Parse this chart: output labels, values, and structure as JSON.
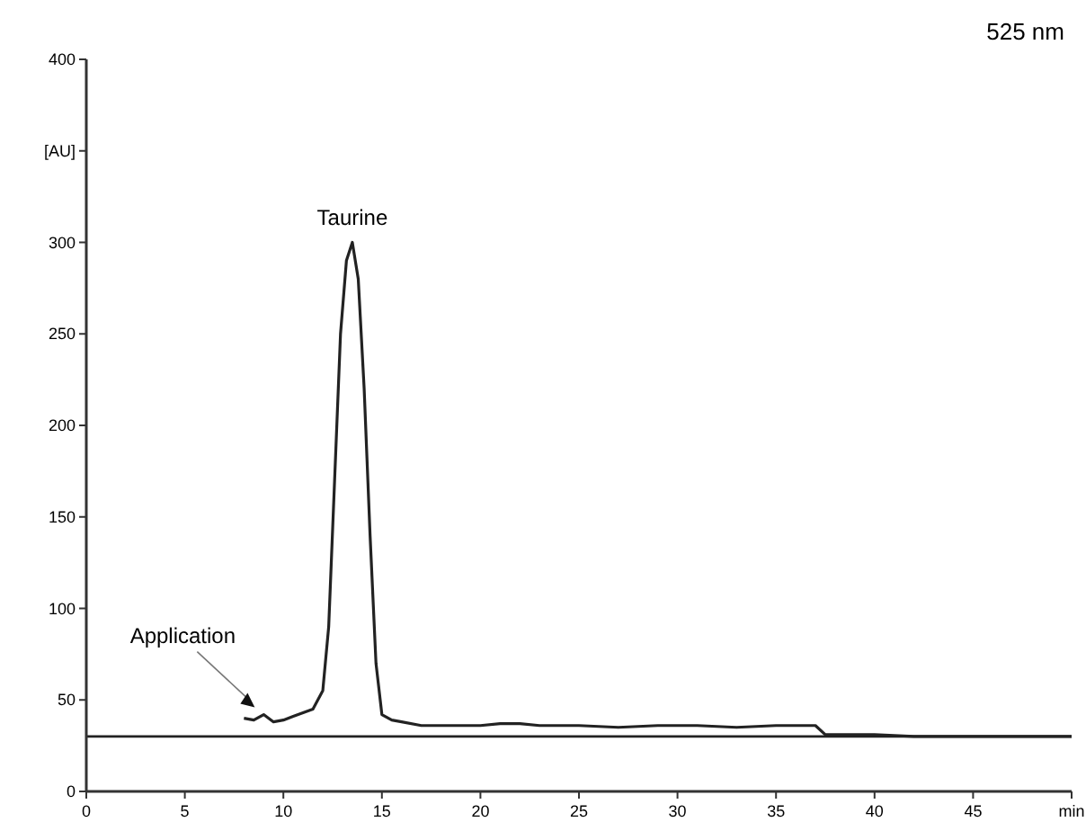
{
  "chart_data": {
    "type": "line",
    "title": "525 nm",
    "x": [
      8,
      8.5,
      9,
      9.5,
      10,
      10.5,
      11,
      11.5,
      12,
      12.3,
      12.6,
      12.9,
      13.2,
      13.5,
      13.8,
      14.1,
      14.4,
      14.7,
      15,
      15.5,
      16,
      17,
      18,
      19,
      20,
      21,
      22,
      23,
      24,
      25,
      27,
      29,
      31,
      33,
      35,
      36.5,
      37,
      37.5,
      38,
      40,
      42,
      45,
      48,
      50
    ],
    "series": [
      {
        "color": "#222222",
        "values": [
          40,
          39,
          42,
          38,
          39,
          41,
          43,
          45,
          55,
          90,
          170,
          250,
          290,
          300,
          280,
          220,
          140,
          70,
          42,
          39,
          38,
          36,
          36,
          36,
          36,
          37,
          37,
          36,
          36,
          36,
          35,
          36,
          36,
          35,
          36,
          36,
          36,
          31,
          31,
          31,
          30,
          30,
          30,
          30
        ]
      }
    ],
    "xlim": [
      0,
      50
    ],
    "xticks": [
      0,
      5,
      10,
      15,
      20,
      25,
      30,
      35,
      40,
      45,
      {
        "value": 50,
        "label": "min"
      }
    ],
    "ylim": [
      0,
      400
    ],
    "yticks": [
      0,
      50,
      100,
      150,
      200,
      250,
      300,
      {
        "value": 350,
        "label": "[AU]"
      },
      400
    ],
    "grid": false,
    "marker": "none",
    "line_style": "solid",
    "ref_lines": [
      {
        "axis": "y",
        "value": 30,
        "label": null,
        "color": "#222222"
      }
    ],
    "annotations": [
      {
        "text": "Taurine",
        "x": 13.5,
        "y": 300
      },
      "Application"
    ]
  }
}
